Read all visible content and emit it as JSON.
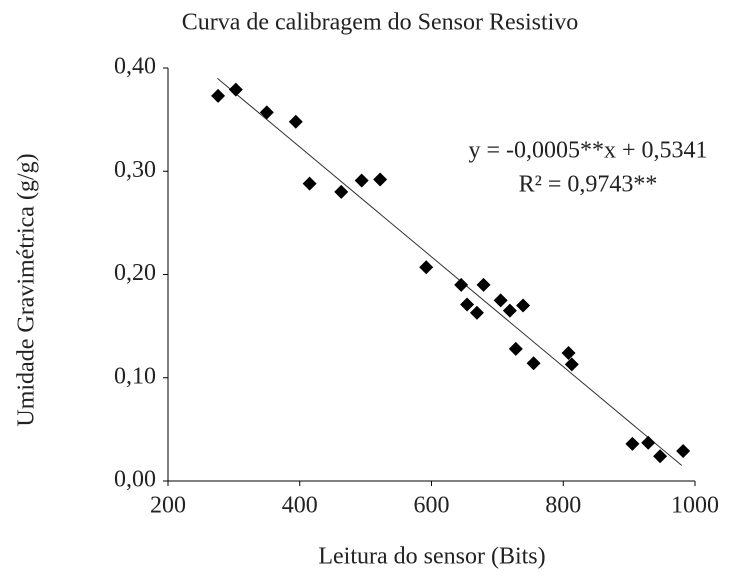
{
  "chart_data": {
    "type": "scatter",
    "title": "Curva de calibragem do Sensor Resistivo",
    "x_label": "Leitura do sensor (Bits)",
    "y_label": "Umidade Gravimétrica (g/g)",
    "x": [
      276,
      303,
      350,
      394,
      415,
      463,
      494,
      522,
      592,
      645,
      654,
      669,
      679,
      705,
      719,
      739,
      728,
      755,
      808,
      813,
      905,
      929,
      947,
      982
    ],
    "series": [
      {
        "color": "#000000",
        "values": [
          0.373,
          0.379,
          0.357,
          0.348,
          0.288,
          0.28,
          0.291,
          0.292,
          0.207,
          0.19,
          0.171,
          0.163,
          0.19,
          0.175,
          0.165,
          0.17,
          0.128,
          0.114,
          0.124,
          0.113,
          0.036,
          0.037,
          0.024,
          0.029
        ]
      }
    ],
    "trendline": {
      "color": "#333333",
      "x": [
        275,
        980
      ],
      "y": [
        0.39,
        0.015
      ]
    },
    "annotations": [
      "y = -0,0005**x + 0,5341",
      "R² = 0,9743**"
    ],
    "xlim": [
      200,
      1000
    ],
    "xticks": [
      200,
      400,
      600,
      800,
      1000
    ],
    "ylim": [
      0,
      0.4
    ],
    "yticks": [
      {
        "value": 0,
        "label": "0,00"
      },
      {
        "value": 0.1,
        "label": "0,10"
      },
      {
        "value": 0.2,
        "label": "0,20"
      },
      {
        "value": 0.3,
        "label": "0,30"
      },
      {
        "value": 0.4,
        "label": "0,40"
      }
    ],
    "grid": false
  }
}
